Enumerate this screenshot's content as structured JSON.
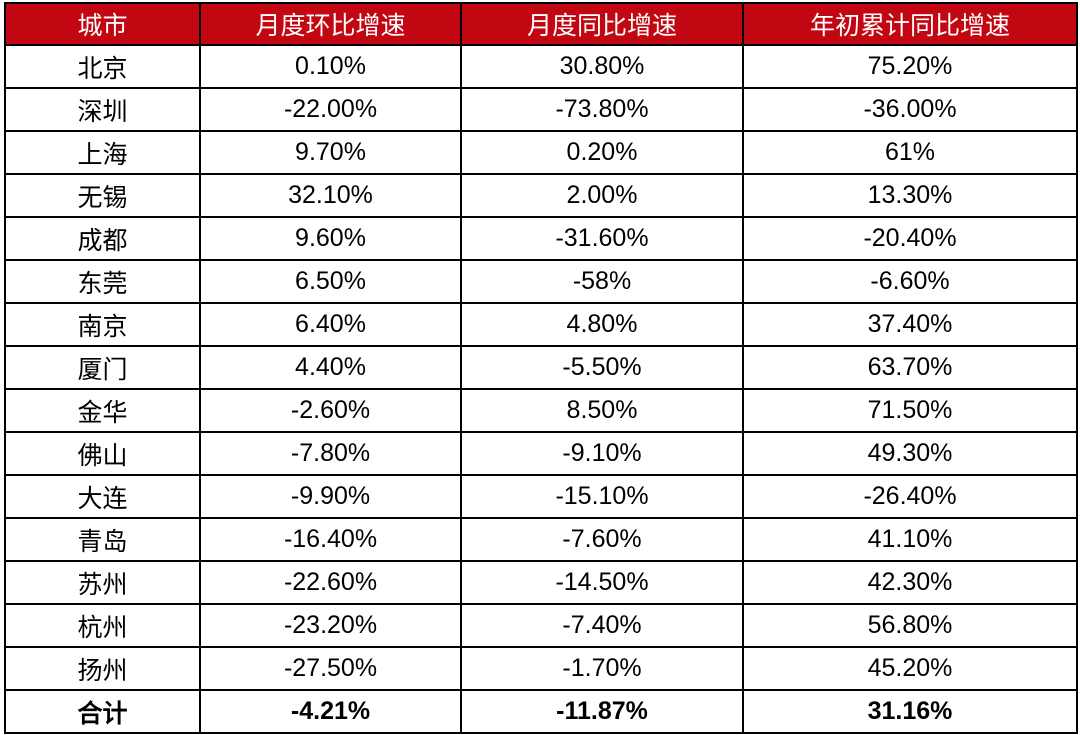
{
  "chart_data": {
    "type": "table",
    "columns": [
      "城市",
      "月度环比增速",
      "月度同比增速",
      "年初累计同比增速"
    ],
    "rows": [
      [
        "北京",
        "0.10%",
        "30.80%",
        "75.20%"
      ],
      [
        "深圳",
        "-22.00%",
        "-73.80%",
        "-36.00%"
      ],
      [
        "上海",
        "9.70%",
        "0.20%",
        "61%"
      ],
      [
        "无锡",
        "32.10%",
        "2.00%",
        "13.30%"
      ],
      [
        "成都",
        "9.60%",
        "-31.60%",
        "-20.40%"
      ],
      [
        "东莞",
        "6.50%",
        "-58%",
        "-6.60%"
      ],
      [
        "南京",
        "6.40%",
        "4.80%",
        "37.40%"
      ],
      [
        "厦门",
        "4.40%",
        "-5.50%",
        "63.70%"
      ],
      [
        "金华",
        "-2.60%",
        "8.50%",
        "71.50%"
      ],
      [
        "佛山",
        "-7.80%",
        "-9.10%",
        "49.30%"
      ],
      [
        "大连",
        "-9.90%",
        "-15.10%",
        "-26.40%"
      ],
      [
        "青岛",
        "-16.40%",
        "-7.60%",
        "41.10%"
      ],
      [
        "苏州",
        "-22.60%",
        "-14.50%",
        "42.30%"
      ],
      [
        "杭州",
        "-23.20%",
        "-7.40%",
        "56.80%"
      ],
      [
        "扬州",
        "-27.50%",
        "-1.70%",
        "45.20%"
      ]
    ],
    "total_row": [
      "合计",
      "-4.21%",
      "-11.87%",
      "31.16%"
    ],
    "layout": {
      "grid": "on",
      "header_position": "top",
      "total_row_bold": true
    }
  },
  "style": {
    "header_bg": "#C20712",
    "header_text": "#FFFFFF",
    "border_color": "#000000",
    "body_text": "#000000",
    "row_bg": "#FFFFFF"
  }
}
